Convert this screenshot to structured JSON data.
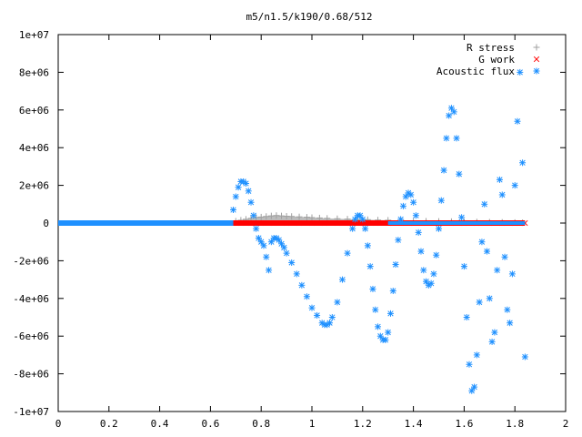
{
  "chart_data": {
    "type": "scatter",
    "title": "m5/n1.5/k190/0.68/512",
    "xlabel": "",
    "ylabel": "",
    "xlim": [
      0,
      2
    ],
    "ylim": [
      -10000000,
      10000000
    ],
    "x_ticks": [
      "0",
      "0.2",
      "0.4",
      "0.6",
      "0.8",
      "1",
      "1.2",
      "1.4",
      "1.6",
      "1.8",
      "2"
    ],
    "y_ticks": [
      "-1e+07",
      "-8e+06",
      "-6e+06",
      "-4e+06",
      "-2e+06",
      "0",
      "2e+06",
      "4e+06",
      "6e+06",
      "8e+06",
      "1e+07"
    ],
    "legend_position": "top-right",
    "grid": false,
    "series": [
      {
        "name": "R stress",
        "color": "#a0a0a0",
        "marker": "plus",
        "points": [
          [
            0.7,
            100000
          ],
          [
            0.72,
            150000
          ],
          [
            0.74,
            200000
          ],
          [
            0.76,
            250000
          ],
          [
            0.78,
            300000
          ],
          [
            0.8,
            320000
          ],
          [
            0.82,
            350000
          ],
          [
            0.84,
            380000
          ],
          [
            0.86,
            400000
          ],
          [
            0.88,
            380000
          ],
          [
            0.9,
            360000
          ],
          [
            0.92,
            350000
          ],
          [
            0.95,
            330000
          ],
          [
            0.98,
            310000
          ],
          [
            1.0,
            290000
          ],
          [
            1.03,
            270000
          ],
          [
            1.06,
            250000
          ],
          [
            1.1,
            230000
          ],
          [
            1.14,
            210000
          ],
          [
            1.18,
            200000
          ],
          [
            1.22,
            180000
          ],
          [
            1.26,
            160000
          ],
          [
            1.3,
            150000
          ],
          [
            1.35,
            130000
          ],
          [
            1.4,
            110000
          ],
          [
            1.45,
            100000
          ],
          [
            1.5,
            90000
          ],
          [
            1.55,
            80000
          ],
          [
            1.6,
            70000
          ],
          [
            1.65,
            60000
          ],
          [
            1.7,
            50000
          ],
          [
            1.75,
            40000
          ],
          [
            1.8,
            30000
          ],
          [
            1.83,
            20000
          ]
        ]
      },
      {
        "name": "G work",
        "color": "#ff0000",
        "marker": "cross",
        "points": [
          [
            0.69,
            0
          ],
          [
            0.72,
            0
          ],
          [
            0.76,
            0
          ],
          [
            0.8,
            0
          ],
          [
            0.85,
            0
          ],
          [
            0.9,
            0
          ],
          [
            0.95,
            0
          ],
          [
            1.0,
            0
          ],
          [
            1.05,
            0
          ],
          [
            1.1,
            0
          ],
          [
            1.15,
            0
          ],
          [
            1.2,
            0
          ],
          [
            1.25,
            0
          ],
          [
            1.3,
            0
          ],
          [
            1.35,
            0
          ],
          [
            1.4,
            0
          ],
          [
            1.45,
            0
          ],
          [
            1.5,
            0
          ],
          [
            1.55,
            0
          ],
          [
            1.6,
            0
          ],
          [
            1.65,
            0
          ],
          [
            1.7,
            0
          ],
          [
            1.75,
            0
          ],
          [
            1.8,
            0
          ],
          [
            1.84,
            0
          ]
        ]
      },
      {
        "name": "Acoustic flux",
        "color": "#1e90ff",
        "marker": "star",
        "points": [
          [
            0.69,
            700000
          ],
          [
            0.7,
            1400000
          ],
          [
            0.71,
            1900000
          ],
          [
            0.72,
            2200000
          ],
          [
            0.73,
            2200000
          ],
          [
            0.74,
            2100000
          ],
          [
            0.75,
            1700000
          ],
          [
            0.76,
            1100000
          ],
          [
            0.77,
            400000
          ],
          [
            0.78,
            -300000
          ],
          [
            0.79,
            -800000
          ],
          [
            0.8,
            -1000000
          ],
          [
            0.81,
            -1200000
          ],
          [
            0.82,
            -1800000
          ],
          [
            0.83,
            -2500000
          ],
          [
            0.84,
            -1000000
          ],
          [
            0.85,
            -800000
          ],
          [
            0.86,
            -800000
          ],
          [
            0.87,
            -900000
          ],
          [
            0.88,
            -1100000
          ],
          [
            0.89,
            -1300000
          ],
          [
            0.9,
            -1600000
          ],
          [
            0.92,
            -2100000
          ],
          [
            0.94,
            -2700000
          ],
          [
            0.96,
            -3300000
          ],
          [
            0.98,
            -3900000
          ],
          [
            1.0,
            -4500000
          ],
          [
            1.02,
            -4900000
          ],
          [
            1.04,
            -5300000
          ],
          [
            1.05,
            -5400000
          ],
          [
            1.06,
            -5400000
          ],
          [
            1.07,
            -5300000
          ],
          [
            1.08,
            -5000000
          ],
          [
            1.1,
            -4200000
          ],
          [
            1.12,
            -3000000
          ],
          [
            1.14,
            -1600000
          ],
          [
            1.16,
            -300000
          ],
          [
            1.17,
            200000
          ],
          [
            1.18,
            400000
          ],
          [
            1.19,
            400000
          ],
          [
            1.2,
            200000
          ],
          [
            1.21,
            -300000
          ],
          [
            1.22,
            -1200000
          ],
          [
            1.23,
            -2300000
          ],
          [
            1.24,
            -3500000
          ],
          [
            1.25,
            -4600000
          ],
          [
            1.26,
            -5500000
          ],
          [
            1.27,
            -6000000
          ],
          [
            1.28,
            -6200000
          ],
          [
            1.29,
            -6200000
          ],
          [
            1.3,
            -5800000
          ],
          [
            1.31,
            -4800000
          ],
          [
            1.32,
            -3600000
          ],
          [
            1.33,
            -2200000
          ],
          [
            1.34,
            -900000
          ],
          [
            1.35,
            200000
          ],
          [
            1.36,
            900000
          ],
          [
            1.37,
            1400000
          ],
          [
            1.38,
            1600000
          ],
          [
            1.39,
            1500000
          ],
          [
            1.4,
            1100000
          ],
          [
            1.41,
            400000
          ],
          [
            1.42,
            -500000
          ],
          [
            1.43,
            -1500000
          ],
          [
            1.44,
            -2500000
          ],
          [
            1.45,
            -3100000
          ],
          [
            1.46,
            -3300000
          ],
          [
            1.47,
            -3200000
          ],
          [
            1.48,
            -2700000
          ],
          [
            1.49,
            -1700000
          ],
          [
            1.5,
            -300000
          ],
          [
            1.51,
            1200000
          ],
          [
            1.52,
            2800000
          ],
          [
            1.53,
            4500000
          ],
          [
            1.54,
            5700000
          ],
          [
            1.55,
            6100000
          ],
          [
            1.56,
            5900000
          ],
          [
            1.57,
            4500000
          ],
          [
            1.58,
            2600000
          ],
          [
            1.59,
            300000
          ],
          [
            1.6,
            -2300000
          ],
          [
            1.61,
            -5000000
          ],
          [
            1.62,
            -7500000
          ],
          [
            1.63,
            -8900000
          ],
          [
            1.64,
            -8700000
          ],
          [
            1.65,
            -7000000
          ],
          [
            1.66,
            -4200000
          ],
          [
            1.67,
            -1000000
          ],
          [
            1.68,
            1000000
          ],
          [
            1.69,
            -1500000
          ],
          [
            1.7,
            -4000000
          ],
          [
            1.71,
            -6300000
          ],
          [
            1.72,
            -5800000
          ],
          [
            1.73,
            -2500000
          ],
          [
            1.74,
            2300000
          ],
          [
            1.75,
            1500000
          ],
          [
            1.76,
            -1800000
          ],
          [
            1.77,
            -4600000
          ],
          [
            1.78,
            -5300000
          ],
          [
            1.79,
            -2700000
          ],
          [
            1.8,
            2000000
          ],
          [
            1.81,
            5400000
          ],
          [
            1.82,
            8000000
          ],
          [
            1.83,
            3200000
          ],
          [
            1.84,
            -7100000
          ]
        ]
      }
    ]
  }
}
